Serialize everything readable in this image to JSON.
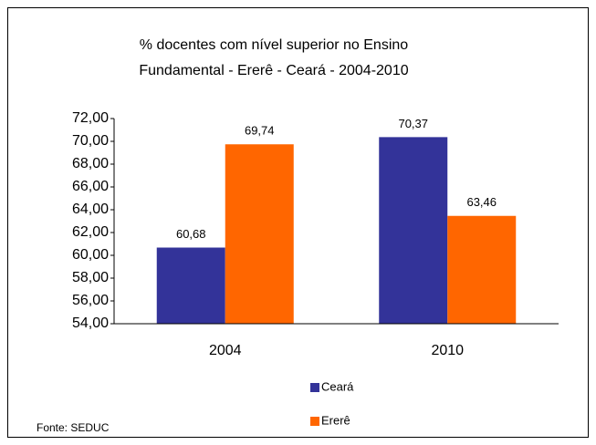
{
  "chart_data": {
    "type": "bar",
    "title": [
      "% docentes com nível  superior no Ensino",
      "Fundamental - Ererê -  Ceará - 2004-2010"
    ],
    "categories": [
      "2004",
      "2010"
    ],
    "series": [
      {
        "name": "Ceará",
        "color": "#333399",
        "values": [
          60.68,
          70.37
        ],
        "value_labels": [
          "60,68",
          "70,37"
        ]
      },
      {
        "name": "Ererê",
        "color": "#ff6600",
        "values": [
          69.74,
          63.46
        ],
        "value_labels": [
          "69,74",
          "63,46"
        ]
      }
    ],
    "ylim": [
      54,
      72
    ],
    "yticks": [
      {
        "value": 54,
        "label": "54,00"
      },
      {
        "value": 56,
        "label": "56,00"
      },
      {
        "value": 58,
        "label": "58,00"
      },
      {
        "value": 60,
        "label": "60,00"
      },
      {
        "value": 62,
        "label": "62,00"
      },
      {
        "value": 64,
        "label": "64,00"
      },
      {
        "value": 66,
        "label": "66,00"
      },
      {
        "value": 68,
        "label": "68,00"
      },
      {
        "value": 70,
        "label": "70,00"
      },
      {
        "value": 72,
        "label": "72,00"
      }
    ],
    "grid": false,
    "legend": "bottom",
    "source": "Fonte: SEDUC"
  }
}
